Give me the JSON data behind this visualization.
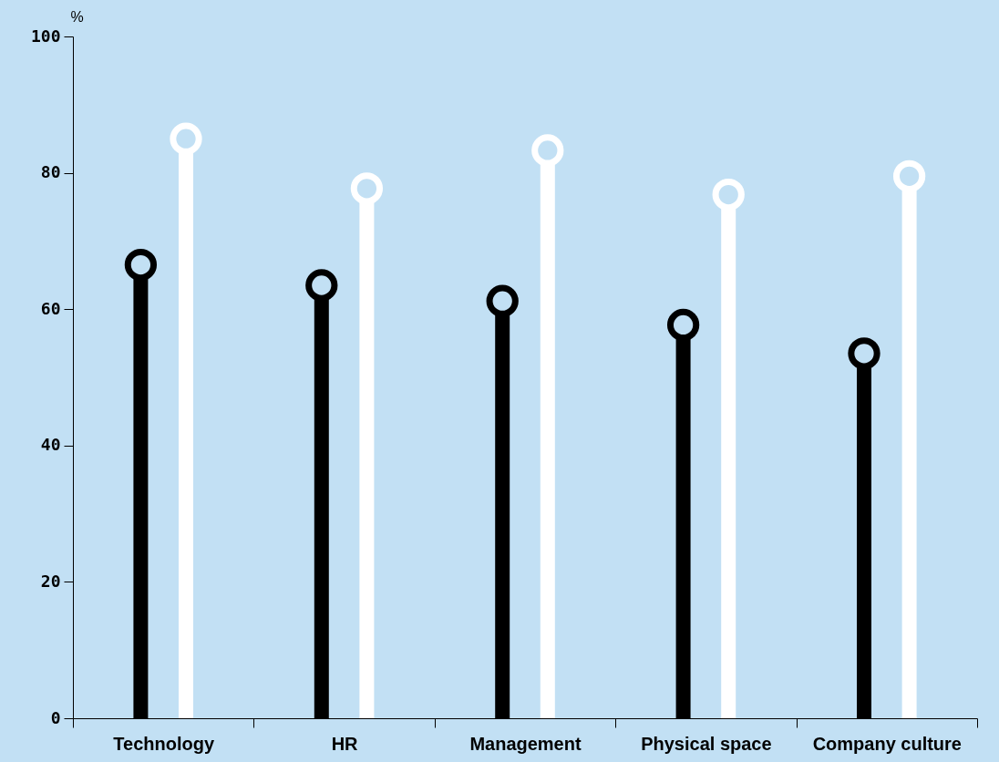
{
  "chart_data": {
    "type": "lollipop",
    "ylabel": "%",
    "categories": [
      "Technology",
      "HR",
      "Management",
      "Physical space",
      "Company culture"
    ],
    "series": [
      {
        "color": "#000000",
        "values": [
          66.5,
          63.5,
          61.2,
          57.7,
          53.5
        ]
      },
      {
        "color": "#ffffff",
        "values": [
          85,
          77.7,
          83.3,
          76.8,
          79.5
        ]
      }
    ],
    "ylim": [
      0,
      100
    ],
    "yticks": [
      0,
      20,
      40,
      60,
      80,
      100
    ],
    "grid": false,
    "legend": false,
    "marker": "circle"
  }
}
